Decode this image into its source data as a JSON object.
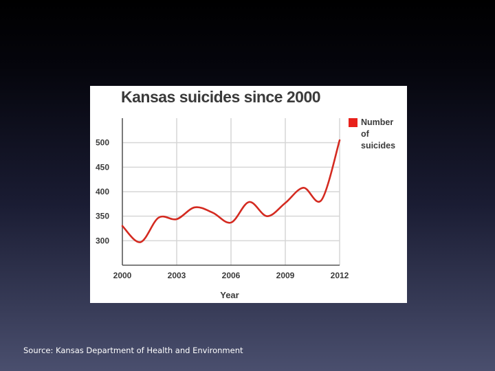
{
  "chart_data": {
    "type": "line",
    "title": "Kansas suicides since 2000",
    "xlabel": "Year",
    "ylabel": "",
    "x": [
      2000,
      2001,
      2002,
      2003,
      2004,
      2005,
      2006,
      2007,
      2008,
      2009,
      2010,
      2011,
      2012
    ],
    "xticks": [
      "2000",
      "2003",
      "2006",
      "2009",
      "2012"
    ],
    "yticks": [
      "300",
      "350",
      "400",
      "450",
      "500"
    ],
    "ylim": [
      250,
      550
    ],
    "xlim": [
      2000,
      2012
    ],
    "grid": true,
    "legend_position": "right",
    "series": [
      {
        "name": "Number of suicides",
        "color": "#d42a20",
        "values": [
          330,
          297,
          347,
          344,
          368,
          357,
          337,
          379,
          350,
          377,
          408,
          383,
          505
        ]
      }
    ]
  },
  "legend": {
    "lines": [
      "Number",
      "of",
      "suicides"
    ],
    "color": "#e8211b"
  },
  "source": "Source: Kansas Department of Health and Environment"
}
